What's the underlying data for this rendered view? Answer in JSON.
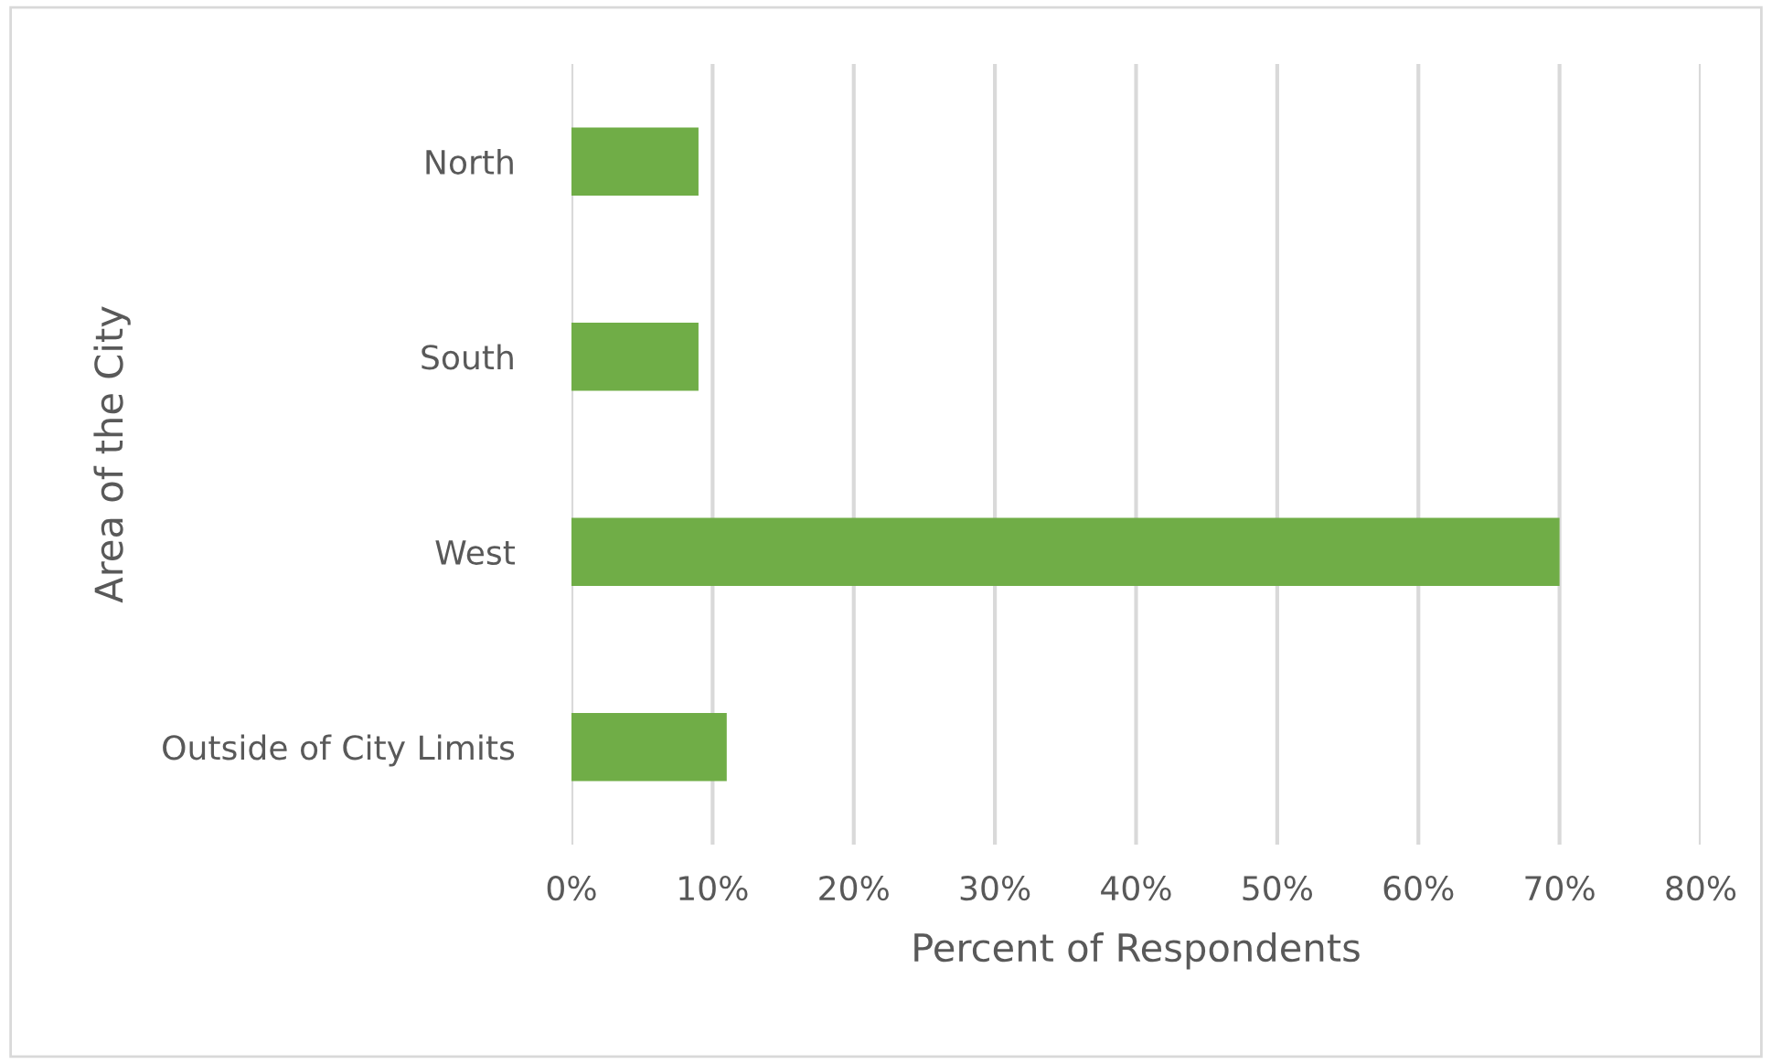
{
  "chart_data": {
    "type": "bar",
    "orientation": "horizontal",
    "xlabel": "Percent of Respondents",
    "ylabel": "Area of the City",
    "categories": [
      "North",
      "South",
      "West",
      "Outside of City Limits"
    ],
    "values": [
      9,
      9,
      70,
      11
    ],
    "color": "#70ad47",
    "xlim": [
      0,
      80
    ],
    "xticks": [
      {
        "value": 0,
        "label": "0%"
      },
      {
        "value": 10,
        "label": "10%"
      },
      {
        "value": 20,
        "label": "20%"
      },
      {
        "value": 30,
        "label": "30%"
      },
      {
        "value": 40,
        "label": "40%"
      },
      {
        "value": 50,
        "label": "50%"
      },
      {
        "value": 60,
        "label": "60%"
      },
      {
        "value": 70,
        "label": "70%"
      },
      {
        "value": 80,
        "label": "80%"
      }
    ],
    "grid": "x",
    "legend": false
  }
}
